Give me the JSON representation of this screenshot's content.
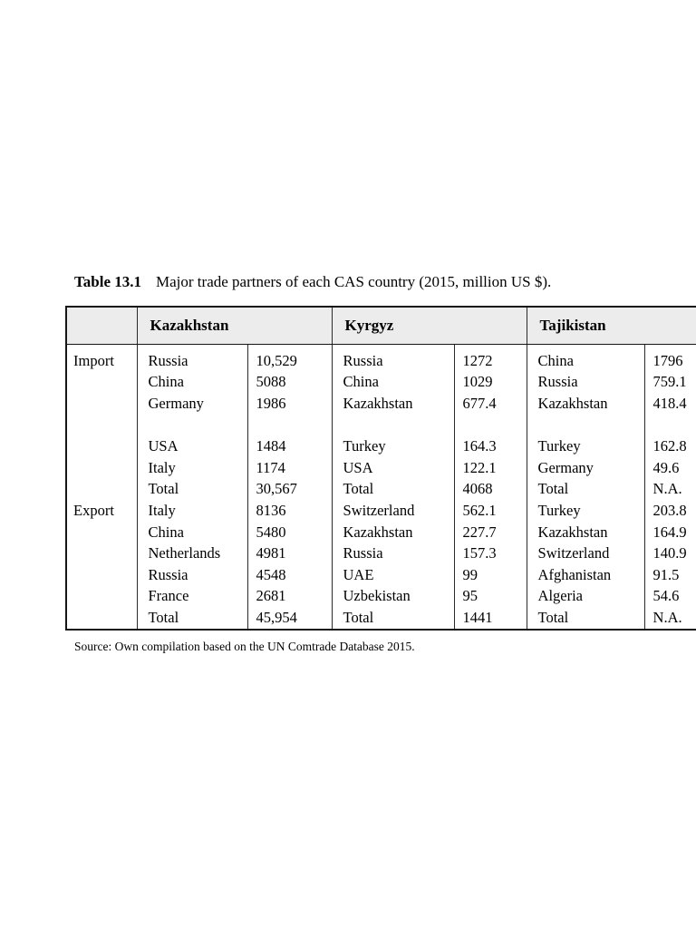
{
  "caption": {
    "label": "Table 13.1",
    "text": "Major trade partners of each CAS country (2015, million US $)."
  },
  "source_note": "Source: Own compilation based on the UN Comtrade Database 2015.",
  "table": {
    "corner": "",
    "columns": [
      "Kazakhstan",
      "Kyrgyz",
      "Tajikistan"
    ],
    "rows": [
      {
        "label": "Import",
        "cells": [
          [
            "Russia",
            "10,529"
          ],
          [
            "Russia",
            "1272"
          ],
          [
            "China",
            "1796"
          ]
        ]
      },
      {
        "label": "",
        "cells": [
          [
            "China",
            "5088"
          ],
          [
            "China",
            "1029"
          ],
          [
            "Russia",
            "759.1"
          ]
        ]
      },
      {
        "label": "",
        "cells": [
          [
            "Germany",
            "1986"
          ],
          [
            "Kazakhstan",
            "677.4"
          ],
          [
            "Kazakhstan",
            "418.4"
          ]
        ]
      },
      {
        "label": "",
        "cells": [
          [
            "",
            ""
          ],
          [
            "",
            ""
          ],
          [
            "",
            ""
          ]
        ]
      },
      {
        "label": "",
        "cells": [
          [
            "USA",
            "1484"
          ],
          [
            "Turkey",
            "164.3"
          ],
          [
            "Turkey",
            "162.8"
          ]
        ]
      },
      {
        "label": "",
        "cells": [
          [
            "Italy",
            "1174"
          ],
          [
            "USA",
            "122.1"
          ],
          [
            "Germany",
            "49.6"
          ]
        ]
      },
      {
        "label": "",
        "cells": [
          [
            "Total",
            "30,567"
          ],
          [
            "Total",
            "4068"
          ],
          [
            "Total",
            "N.A."
          ]
        ]
      },
      {
        "label": "Export",
        "cells": [
          [
            "Italy",
            "8136"
          ],
          [
            "Switzerland",
            "562.1"
          ],
          [
            "Turkey",
            "203.8"
          ]
        ]
      },
      {
        "label": "",
        "cells": [
          [
            "China",
            "5480"
          ],
          [
            "Kazakhstan",
            "227.7"
          ],
          [
            "Kazakhstan",
            "164.9"
          ]
        ]
      },
      {
        "label": "",
        "cells": [
          [
            "Netherlands",
            "4981"
          ],
          [
            "Russia",
            "157.3"
          ],
          [
            "Switzerland",
            "140.9"
          ]
        ]
      },
      {
        "label": "",
        "cells": [
          [
            "Russia",
            "4548"
          ],
          [
            "UAE",
            "99"
          ],
          [
            "Afghanistan",
            "91.5"
          ]
        ]
      },
      {
        "label": "",
        "cells": [
          [
            "France",
            "2681"
          ],
          [
            "Uzbekistan",
            "95"
          ],
          [
            "Algeria",
            "54.6"
          ]
        ]
      },
      {
        "label": "",
        "cells": [
          [
            "Total",
            "45,954"
          ],
          [
            "Total",
            "1441"
          ],
          [
            "Total",
            "N.A."
          ]
        ]
      }
    ]
  }
}
